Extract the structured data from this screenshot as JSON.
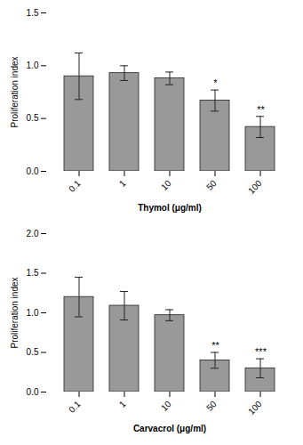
{
  "chart_data": [
    {
      "type": "bar",
      "xlabel": "Thymol (μg/ml)",
      "ylabel": "Proliferation index",
      "categories": [
        "0.1",
        "1",
        "10",
        "50",
        "100"
      ],
      "values": [
        0.9,
        0.93,
        0.88,
        0.67,
        0.42
      ],
      "errors": [
        0.22,
        0.07,
        0.06,
        0.1,
        0.1
      ],
      "annotations": [
        {
          "x": "50",
          "text": "*"
        },
        {
          "x": "100",
          "text": "**"
        }
      ],
      "color": "#999999",
      "ylim": [
        0,
        1.5
      ],
      "yticks": [
        {
          "value": 0,
          "label": "0.0"
        },
        0.5,
        {
          "value": 1,
          "label": "1.0"
        },
        1.5
      ]
    },
    {
      "type": "bar",
      "xlabel": "Carvacrol (μg/ml)",
      "ylabel": "Proliferation index",
      "categories": [
        "0.1",
        "1",
        "10",
        "50",
        "100"
      ],
      "values": [
        1.2,
        1.09,
        0.97,
        0.4,
        0.3
      ],
      "errors": [
        0.25,
        0.18,
        0.07,
        0.1,
        0.12
      ],
      "annotations": [
        {
          "x": "50",
          "text": "**"
        },
        {
          "x": "100",
          "text": "***"
        }
      ],
      "color": "#999999",
      "ylim": [
        0,
        2.0
      ],
      "yticks": [
        {
          "value": 0,
          "label": "0.0"
        },
        0.5,
        {
          "value": 1,
          "label": "1.0"
        },
        1.5,
        {
          "value": 2,
          "label": "2.0"
        }
      ]
    }
  ]
}
